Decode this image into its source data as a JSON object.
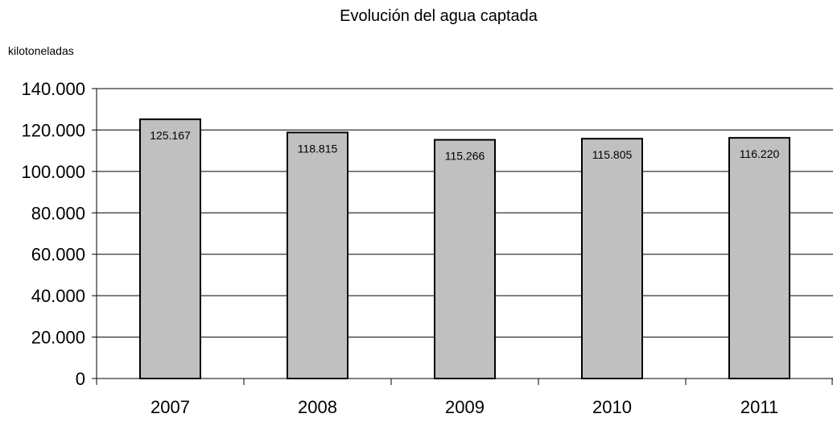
{
  "chart_data": {
    "type": "bar",
    "title": "Evolución del agua captada",
    "ylabel": "kilotoneladas",
    "xlabel": "",
    "categories": [
      "2007",
      "2008",
      "2009",
      "2010",
      "2011"
    ],
    "values": [
      125167,
      118815,
      115266,
      115805,
      116220
    ],
    "value_labels": [
      "125.167",
      "118.815",
      "115.266",
      "115.805",
      "116.220"
    ],
    "ylim": [
      0,
      140000
    ],
    "yticks": [
      0,
      20000,
      40000,
      60000,
      80000,
      100000,
      120000,
      140000
    ],
    "ytick_labels": [
      "0",
      "20.000",
      "40.000",
      "60.000",
      "80.000",
      "100.000",
      "120.000",
      "140.000"
    ],
    "grid": true,
    "legend": "none",
    "colors": {
      "bar_fill": "#c0c0c0",
      "bar_stroke": "#000000",
      "grid": "#000000",
      "background": "#ffffff"
    }
  }
}
